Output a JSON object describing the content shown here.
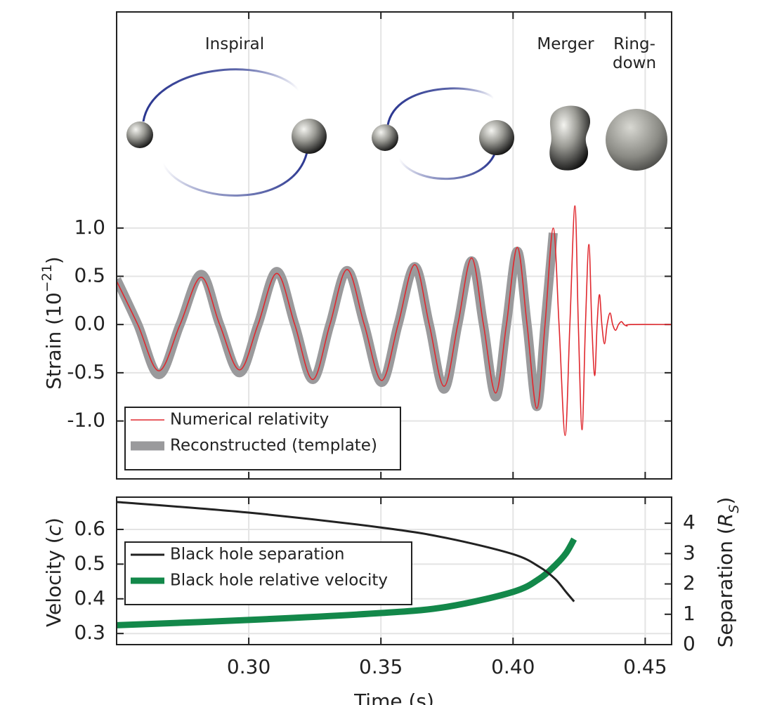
{
  "chart_data": [
    {
      "type": "line",
      "ylabel": [
        "Strain (10",
        "−21",
        ")"
      ],
      "annotations": [
        "Inspiral",
        "Merger",
        "Ring-",
        "down"
      ],
      "x": [
        0.25,
        0.258,
        0.266,
        0.274,
        0.282,
        0.289,
        0.2965,
        0.3035,
        0.3106,
        0.3174,
        0.3242,
        0.3307,
        0.3372,
        0.3437,
        0.3503,
        0.3565,
        0.3628,
        0.3683,
        0.3739,
        0.3791,
        0.3843,
        0.3888,
        0.3934,
        0.3975,
        0.4016,
        0.4053,
        0.409,
        0.4121,
        0.4152,
        0.4174,
        0.4197,
        0.4215,
        0.4234,
        0.4247,
        0.4261,
        0.4274,
        0.4287,
        0.4298,
        0.4309,
        0.4318,
        0.4327,
        0.4336,
        0.4346,
        0.4356,
        0.4367,
        0.4377,
        0.4388,
        0.4399,
        0.441,
        0.442,
        0.4431,
        0.4445,
        0.46
      ],
      "series": [
        {
          "name": "Numerical relativity",
          "color": "#e0282e",
          "values": [
            0.45,
            0,
            -0.48,
            0,
            0.49,
            0,
            -0.47,
            0,
            0.53,
            0,
            -0.57,
            0,
            0.57,
            0,
            -0.58,
            0,
            0.62,
            0,
            -0.64,
            0,
            0.69,
            0,
            -0.71,
            0,
            0.8,
            0,
            -0.87,
            0,
            1.0,
            0,
            -1.15,
            0,
            1.23,
            0,
            -1.09,
            0,
            0.83,
            0,
            -0.53,
            0,
            0.31,
            0,
            -0.2,
            0,
            0.12,
            0,
            -0.06,
            0,
            0.03,
            0,
            -0.015,
            0,
            0
          ]
        },
        {
          "name": "Reconstructed (template)",
          "color": "#9a9a9c",
          "values": [
            0.47,
            0,
            -0.52,
            0,
            0.52,
            0,
            -0.5,
            0,
            0.55,
            0,
            -0.57,
            0,
            0.56,
            0,
            -0.6,
            0,
            0.6,
            0,
            -0.67,
            0,
            0.66,
            0,
            -0.75,
            0,
            0.76,
            0,
            -0.85,
            0,
            0.95,
            null,
            null,
            null,
            null,
            null,
            null,
            null,
            null,
            null,
            null,
            null,
            null,
            null,
            null,
            null,
            null,
            null,
            null,
            null,
            null,
            null,
            null,
            null,
            null
          ]
        }
      ],
      "xlim": [
        0.25,
        0.46
      ],
      "xticks": [
        0.3,
        0.35,
        0.4,
        0.45
      ],
      "xtick_labels": false,
      "ylim": [
        -1.6,
        3.24
      ],
      "yticks": [
        {
          "value": 1,
          "label": "1.0"
        },
        {
          "value": 0.5,
          "label": "0.5"
        },
        {
          "value": 0,
          "label": "0.0"
        },
        {
          "value": -0.5,
          "label": "-0.5"
        },
        {
          "value": -1,
          "label": "-1.0"
        }
      ],
      "grid": true,
      "legend": "lower left"
    },
    {
      "type": "line",
      "xlabel": "Time (s)",
      "ylabel": [
        "Velocity (",
        "c",
        ")"
      ],
      "y2label": [
        "Separation (",
        "R",
        "S",
        ")"
      ],
      "x": [
        0.25,
        0.3,
        0.35,
        0.375,
        0.4,
        0.41,
        0.416,
        0.42,
        0.4231
      ],
      "series": [
        {
          "name": "Black hole separation",
          "color": "#222222",
          "axis": "y2",
          "values": [
            4.7,
            4.35,
            3.86,
            3.51,
            2.98,
            2.56,
            2.16,
            1.74,
            1.42
          ]
        },
        {
          "name": "Black hole relative velocity",
          "color": "#13884a",
          "values": [
            0.324,
            0.339,
            0.359,
            0.377,
            0.42,
            0.458,
            0.497,
            0.531,
            0.572
          ]
        }
      ],
      "xlim": [
        0.25,
        0.46
      ],
      "xticks": [
        {
          "value": 0.3,
          "label": "0.30"
        },
        {
          "value": 0.35,
          "label": "0.35"
        },
        {
          "value": 0.4,
          "label": "0.40"
        },
        {
          "value": 0.45,
          "label": "0.45"
        }
      ],
      "ylim": [
        0.268,
        0.693
      ],
      "yticks": [
        0.3,
        0.4,
        0.5,
        0.6
      ],
      "y2lim": [
        0,
        4.86
      ],
      "y2ticks": [
        0,
        1,
        2,
        3,
        4
      ],
      "grid": true,
      "legend": "upper left"
    }
  ]
}
